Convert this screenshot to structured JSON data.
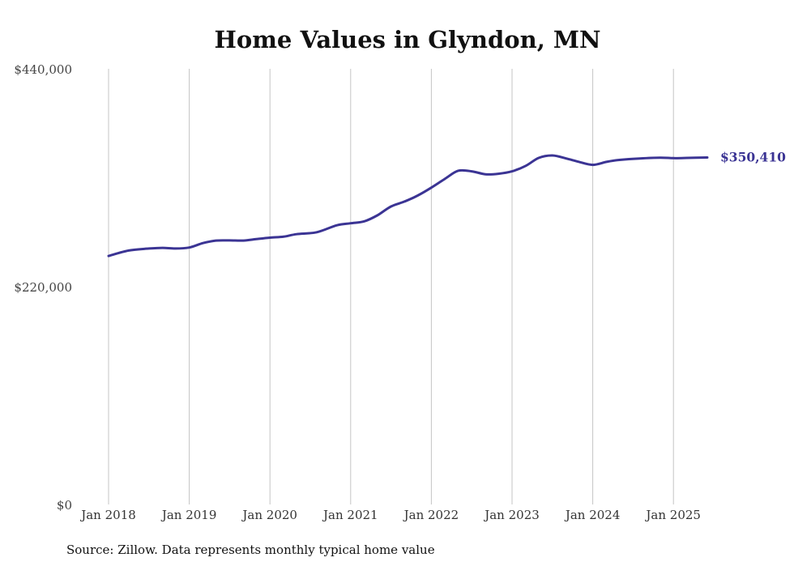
{
  "chart_data": {
    "type": "line",
    "title": "Home Values in Glyndon, MN",
    "xlabel": "",
    "ylabel": "",
    "ylim": [
      0,
      440000
    ],
    "grid": "vertical",
    "y_ticks": [
      {
        "value": 0,
        "label": "$0"
      },
      {
        "value": 220000,
        "label": "$220,000"
      },
      {
        "value": 440000,
        "label": "$440,000"
      }
    ],
    "x_ticks": [
      {
        "t": 2018.0,
        "label": "Jan 2018"
      },
      {
        "t": 2019.0,
        "label": "Jan 2019"
      },
      {
        "t": 2020.0,
        "label": "Jan 2020"
      },
      {
        "t": 2021.0,
        "label": "Jan 2021"
      },
      {
        "t": 2022.0,
        "label": "Jan 2022"
      },
      {
        "t": 2023.0,
        "label": "Jan 2023"
      },
      {
        "t": 2024.0,
        "label": "Jan 2024"
      },
      {
        "t": 2025.0,
        "label": "Jan 2025"
      }
    ],
    "x_range": [
      2018.0,
      2025.42
    ],
    "series": [
      {
        "name": "Typical home value",
        "color": "#3b3494",
        "end_label": "$350,410",
        "points": [
          [
            2018.0,
            251000
          ],
          [
            2018.25,
            256500
          ],
          [
            2018.5,
            258500
          ],
          [
            2018.67,
            259200
          ],
          [
            2018.83,
            258500
          ],
          [
            2019.0,
            259500
          ],
          [
            2019.17,
            264000
          ],
          [
            2019.33,
            266500
          ],
          [
            2019.5,
            266700
          ],
          [
            2019.67,
            266500
          ],
          [
            2019.83,
            268000
          ],
          [
            2020.0,
            269500
          ],
          [
            2020.17,
            270500
          ],
          [
            2020.33,
            273000
          ],
          [
            2020.58,
            275000
          ],
          [
            2020.83,
            282000
          ],
          [
            2021.0,
            284000
          ],
          [
            2021.17,
            286000
          ],
          [
            2021.33,
            292000
          ],
          [
            2021.5,
            301000
          ],
          [
            2021.67,
            306000
          ],
          [
            2021.83,
            312000
          ],
          [
            2022.0,
            320000
          ],
          [
            2022.17,
            329000
          ],
          [
            2022.33,
            337000
          ],
          [
            2022.5,
            336500
          ],
          [
            2022.67,
            333500
          ],
          [
            2022.83,
            334000
          ],
          [
            2023.0,
            336500
          ],
          [
            2023.17,
            342000
          ],
          [
            2023.33,
            350000
          ],
          [
            2023.5,
            352500
          ],
          [
            2023.67,
            349500
          ],
          [
            2023.83,
            346000
          ],
          [
            2024.0,
            343000
          ],
          [
            2024.17,
            346000
          ],
          [
            2024.33,
            348000
          ],
          [
            2024.58,
            349500
          ],
          [
            2024.83,
            350300
          ],
          [
            2025.0,
            349800
          ],
          [
            2025.17,
            350000
          ],
          [
            2025.42,
            350410
          ]
        ]
      }
    ]
  },
  "footer": {
    "source": "Source: Zillow. Data represents monthly typical home value"
  }
}
